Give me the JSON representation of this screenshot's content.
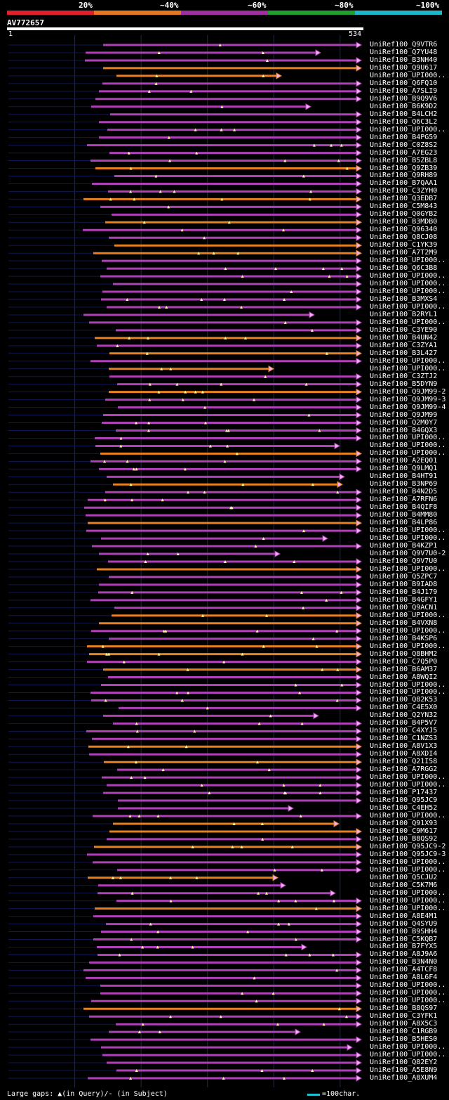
{
  "legend": {
    "segments": [
      {
        "label": "20%",
        "color": "#e0202c"
      },
      {
        "label": "~40%",
        "color": "#e87820"
      },
      {
        "label": "~60%",
        "color": "#a030a0"
      },
      {
        "label": "~80%",
        "color": "#20a030"
      },
      {
        "label": "~100%",
        "color": "#20b8c8"
      }
    ]
  },
  "query": {
    "id": "AV772657",
    "start": "1",
    "end": "534",
    "length": 534
  },
  "colors": {
    "purple": "#b040b8",
    "orange": "#e88020",
    "arrow_fill": "#f0b0f0",
    "track": "#101850",
    "gap": "#ffffa0"
  },
  "hits": [
    "UniRef100_Q9VTR6",
    "UniRef100_Q7YU48",
    "UniRef100_B3NH40",
    "UniRef100_Q9U617",
    "UniRef100_UPI000..",
    "UniRef100_Q6FQ10",
    "UniRef100_A7SLI9",
    "UniRef100_B9Q9V6",
    "UniRef100_B6K9D2",
    "UniRef100_B4LCH2",
    "UniRef100_Q6C3L2",
    "UniRef100_UPI000..",
    "UniRef100_B4PG59",
    "UniRef100_C0Z8S2",
    "UniRef100_A7EG23",
    "UniRef100_B5ZBL8",
    "UniRef100_Q9ZB39",
    "UniRef100_Q9RH89",
    "UniRef100_B7QAA1",
    "UniRef100_C3ZYH0",
    "UniRef100_Q3EDB7",
    "UniRef100_C5M843",
    "UniRef100_Q0GYB2",
    "UniRef100_B3MDB0",
    "UniRef100_Q96340",
    "UniRef100_Q8CJ08",
    "UniRef100_C1YK39",
    "UniRef100_A7T2M9",
    "UniRef100_UPI000..",
    "UniRef100_Q6C3B8",
    "UniRef100_UPI000..",
    "UniRef100_UPI000..",
    "UniRef100_UPI000..",
    "UniRef100_B3MXS4",
    "UniRef100_UPI000..",
    "UniRef100_B2RYL1",
    "UniRef100_UPI000..",
    "UniRef100_C3YE90",
    "UniRef100_B4UN42",
    "UniRef100_C3ZYA1",
    "UniRef100_B3L427",
    "UniRef100_UPI000..",
    "UniRef100_UPI000..",
    "UniRef100_C3ZTJ2",
    "UniRef100_B5DYN9",
    "UniRef100_Q9JM99-2",
    "UniRef100_Q9JM99-3",
    "UniRef100_Q9JM99-4",
    "UniRef100_Q9JM99",
    "UniRef100_Q2M0Y7",
    "UniRef100_B4GQX3",
    "UniRef100_UPI000..",
    "UniRef100_UPI000..",
    "UniRef100_UPI000..",
    "UniRef100_A2EQ01",
    "UniRef100_Q9LMQ1",
    "UniRef100_B4HT91",
    "UniRef100_B3NP69",
    "UniRef100_B4N2D5",
    "UniRef100_A7RFN6",
    "UniRef100_B4QIF8",
    "UniRef100_B4MM80",
    "UniRef100_B4LP86",
    "UniRef100_UPI000..",
    "UniRef100_UPI000..",
    "UniRef100_B4KZP1",
    "UniRef100_Q9V7U0-2",
    "UniRef100_Q9V7U0",
    "UniRef100_UPI000..",
    "UniRef100_Q5ZPC7",
    "UniRef100_B9IAD8",
    "UniRef100_B4J179",
    "UniRef100_B4GFY1",
    "UniRef100_Q9ACN1",
    "UniRef100_UPI000..",
    "UniRef100_B4VXN8",
    "UniRef100_UPI000..",
    "UniRef100_B4KSP6",
    "UniRef100_UPI000..",
    "UniRef100_Q8BHM2",
    "UniRef100_C7Q5P0",
    "UniRef100_B6AM37",
    "UniRef100_A8WQI2",
    "UniRef100_UPI000..",
    "UniRef100_UPI000..",
    "UniRef100_Q82K53",
    "UniRef100_C4E5X0",
    "UniRef100_Q2YN32",
    "UniRef100_B4P5V7",
    "UniRef100_C4XYJ5",
    "UniRef100_C1NZS3",
    "UniRef100_A8V1X3",
    "UniRef100_A8XDI4",
    "UniRef100_Q21I58",
    "UniRef100_A7RGG2",
    "UniRef100_UPI000..",
    "UniRef100_UPI000..",
    "UniRef100_P17437",
    "UniRef100_Q95JC9",
    "UniRef100_C4EH52",
    "UniRef100_UPI000..",
    "UniRef100_Q91X93",
    "UniRef100_C9M617",
    "UniRef100_B8QS92",
    "UniRef100_Q95JC9-2",
    "UniRef100_Q95JC9-3",
    "UniRef100_UPI000..",
    "UniRef100_UPI000..",
    "UniRef100_Q5CJU2",
    "UniRef100_C5K7M6",
    "UniRef100_UPI000..",
    "UniRef100_UPI000..",
    "UniRef100_UPI000..",
    "UniRef100_A8E4M1",
    "UniRef100_Q4SYU9",
    "UniRef100_B9SHH4",
    "UniRef100_C5KQB7",
    "UniRef100_B7FYX5",
    "UniRef100_A8J9A6",
    "UniRef100_B3N4N0",
    "UniRef100_A4TCF8",
    "UniRef100_A8L6F4",
    "UniRef100_UPI000..",
    "UniRef100_UPI000..",
    "UniRef100_UPI000..",
    "UniRef100_B8QS97",
    "UniRef100_C3YFK1",
    "UniRef100_A8X5C3",
    "UniRef100_C1RGB9",
    "UniRef100_B5HES0",
    "UniRef100_UPI000..",
    "UniRef100_UPI000..",
    "UniRef100_Q82EY2",
    "UniRef100_A5E8N9",
    "UniRef100_A8XUM4"
  ],
  "footer": {
    "left": "Large gaps: ▲(in Query)/- (in Subject)",
    "right": "=100char."
  }
}
